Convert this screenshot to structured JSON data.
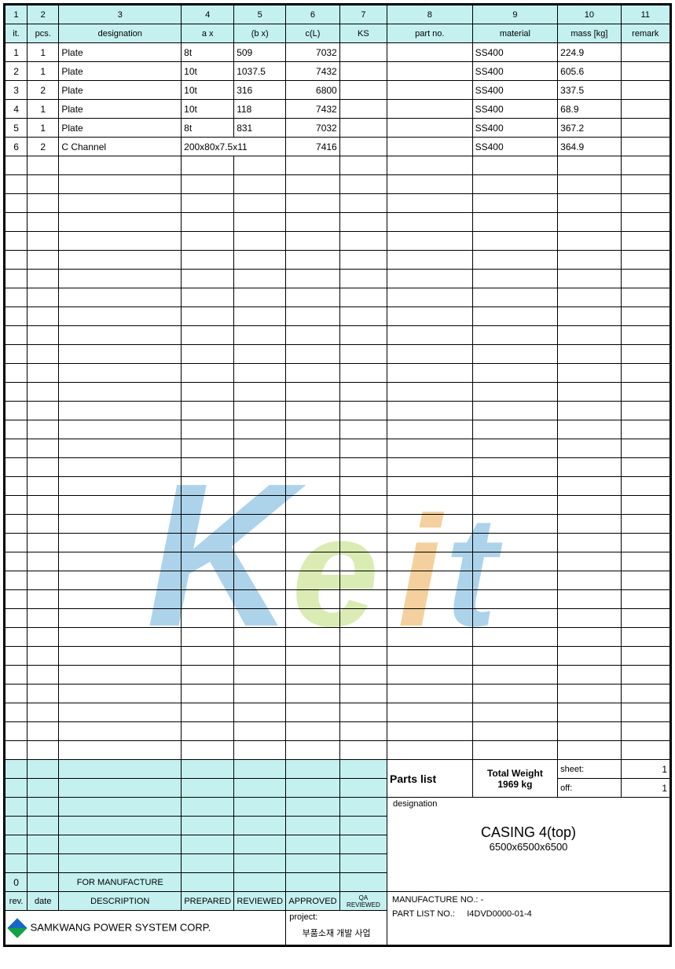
{
  "columns_num": [
    "1",
    "2",
    "3",
    "4",
    "5",
    "6",
    "7",
    "8",
    "9",
    "10",
    "11"
  ],
  "columns_lbl": [
    "it.",
    "pcs.",
    "designation",
    "a    x",
    "(b    x)",
    "c(L)",
    "KS",
    "part no.",
    "material",
    "mass [kg]",
    "remark"
  ],
  "rows": [
    {
      "it": "1",
      "pcs": "1",
      "des": "Plate",
      "a": "8t",
      "b": "509",
      "c": "7032",
      "ks": "",
      "pn": "",
      "mat": "SS400",
      "mass": "224.9",
      "rem": ""
    },
    {
      "it": "2",
      "pcs": "1",
      "des": "Plate",
      "a": "10t",
      "b": "1037.5",
      "c": "7432",
      "ks": "",
      "pn": "",
      "mat": "SS400",
      "mass": "605.6",
      "rem": ""
    },
    {
      "it": "3",
      "pcs": "2",
      "des": "Plate",
      "a": "10t",
      "b": "316",
      "c": "6800",
      "ks": "",
      "pn": "",
      "mat": "SS400",
      "mass": "337.5",
      "rem": ""
    },
    {
      "it": "4",
      "pcs": "1",
      "des": "Plate",
      "a": "10t",
      "b": "118",
      "c": "7432",
      "ks": "",
      "pn": "",
      "mat": "SS400",
      "mass": "68.9",
      "rem": ""
    },
    {
      "it": "5",
      "pcs": "1",
      "des": "Plate",
      "a": "8t",
      "b": "831",
      "c": "7032",
      "ks": "",
      "pn": "",
      "mat": "SS400",
      "mass": "367.2",
      "rem": ""
    },
    {
      "it": "6",
      "pcs": "2",
      "des": "C Channel",
      "a": "200x80x7.5x11",
      "b": "",
      "c": "7416",
      "ks": "",
      "pn": "",
      "mat": "SS400",
      "mass": "364.9",
      "rem": ""
    }
  ],
  "empty_main_rows": 32,
  "title": {
    "parts_list": "Parts list",
    "total_weight_label": "Total Weight",
    "total_weight_value": "1969 kg",
    "sheet_label": "sheet:",
    "sheet_value": "1",
    "off_label": "off:",
    "off_value": "1",
    "designation_label": "designation",
    "designation_title": "CASING 4(top)",
    "designation_sub": "6500x6500x6500",
    "rev0": "0",
    "for_manufacture": "FOR MANUFACTURE",
    "rev_hdr": [
      "rev.",
      "date",
      "DESCRIPTION",
      "PREPARED",
      "REVIEWED",
      "APPROVED",
      "QA REVIEWED"
    ],
    "company": "SAMKWANG POWER SYSTEM CORP.",
    "project_label": "project:",
    "project_value": "부품소재 개발 사업",
    "mfg_no_label": "MANUFACTURE NO.: -",
    "partlist_no_label": "PART LIST NO.:",
    "partlist_no_value": "I4DVD0000-01-4"
  },
  "colors": {
    "header_bg": "#c5f0f0",
    "border": "#000000",
    "wm_blue": "#5aa8d8",
    "wm_green": "#b6d86a",
    "wm_orange": "#e8a23b"
  }
}
